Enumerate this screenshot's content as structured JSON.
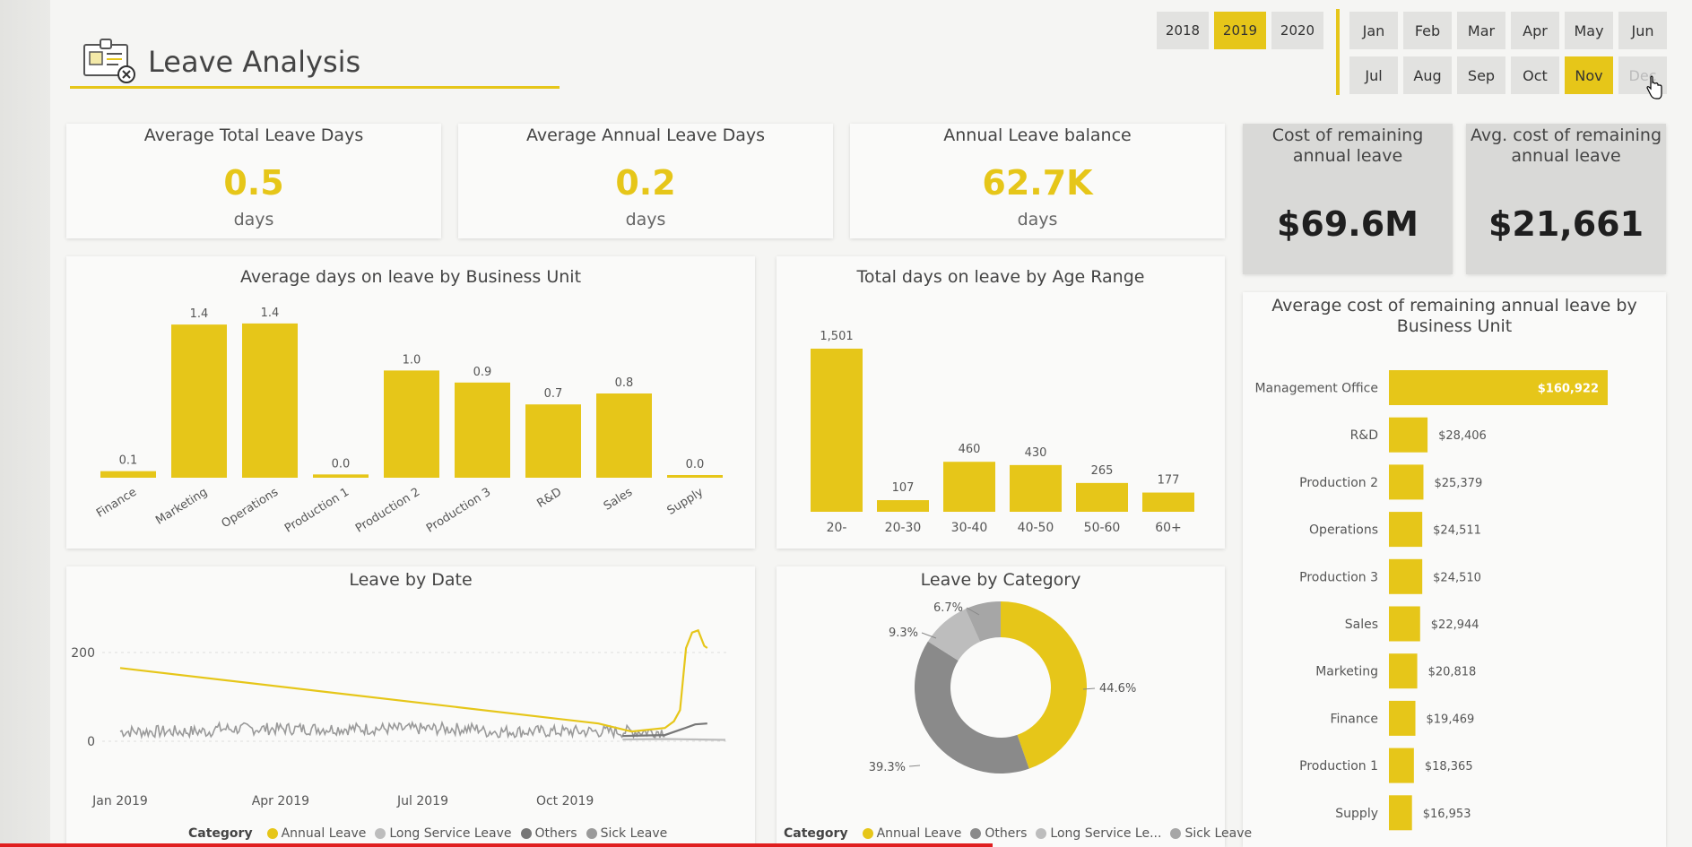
{
  "header": {
    "title": "Leave Analysis",
    "icon": "id-card-icon"
  },
  "years": [
    {
      "label": "2018",
      "active": false
    },
    {
      "label": "2019",
      "active": true
    },
    {
      "label": "2020",
      "active": false
    }
  ],
  "months": [
    {
      "label": "Jan",
      "active": false,
      "disabled": false
    },
    {
      "label": "Feb",
      "active": false,
      "disabled": false
    },
    {
      "label": "Mar",
      "active": false,
      "disabled": false
    },
    {
      "label": "Apr",
      "active": false,
      "disabled": false
    },
    {
      "label": "May",
      "active": false,
      "disabled": false
    },
    {
      "label": "Jun",
      "active": false,
      "disabled": false
    },
    {
      "label": "Jul",
      "active": false,
      "disabled": false
    },
    {
      "label": "Aug",
      "active": false,
      "disabled": false
    },
    {
      "label": "Sep",
      "active": false,
      "disabled": false
    },
    {
      "label": "Oct",
      "active": false,
      "disabled": false
    },
    {
      "label": "Nov",
      "active": true,
      "disabled": false
    },
    {
      "label": "Dec",
      "active": false,
      "disabled": true
    }
  ],
  "kpis": [
    {
      "title": "Average Total Leave Days",
      "value": "0.5",
      "unit": "days"
    },
    {
      "title": "Average Annual Leave Days",
      "value": "0.2",
      "unit": "days"
    },
    {
      "title": "Annual Leave balance",
      "value": "62.7K",
      "unit": "days"
    }
  ],
  "cost_kpis": [
    {
      "title_line1": "Cost of remaining",
      "title_line2": "annual leave",
      "value": "$69.6M"
    },
    {
      "title_line1": "Avg. cost of remaining",
      "title_line2": "annual leave",
      "value": "$21,661"
    }
  ],
  "colors": {
    "accent": "#e6c619",
    "grey_dark": "#777777",
    "grey_mid": "#9a9a9a",
    "grey_light": "#bdbdbd"
  },
  "chart_data": [
    {
      "id": "bu_avg_days",
      "type": "bar",
      "title": "Average days on leave by Business Unit",
      "categories": [
        "Finance",
        "Marketing",
        "Operations",
        "Production 1",
        "Production 2",
        "Production 3",
        "R&D",
        "Sales",
        "Supply"
      ],
      "values": [
        0.1,
        1.4,
        1.4,
        0.0,
        1.0,
        0.9,
        0.7,
        0.8,
        0.0
      ],
      "labels": [
        "0.1",
        "1.4",
        "1.4",
        "0.0",
        "1.0",
        "0.9",
        "0.7",
        "0.8",
        "0.0"
      ],
      "plot_values": [
        0.06,
        1.4,
        1.41,
        0.03,
        0.98,
        0.87,
        0.67,
        0.77,
        0.02
      ],
      "ylim": [
        0,
        1.45
      ]
    },
    {
      "id": "age_total_days",
      "type": "bar",
      "title": "Total days on leave by Age Range",
      "categories": [
        "20-",
        "20-30",
        "30-40",
        "40-50",
        "50-60",
        "60+"
      ],
      "values": [
        1501,
        107,
        460,
        430,
        265,
        177
      ],
      "labels": [
        "1,501",
        "107",
        "460",
        "430",
        "265",
        "177"
      ],
      "ylim": [
        0,
        1550
      ]
    },
    {
      "id": "bu_avg_cost",
      "type": "bar",
      "orientation": "horizontal",
      "title_line1": "Average cost of remaining annual leave by",
      "title_line2": "Business Unit",
      "categories": [
        "Management Office",
        "R&D",
        "Production 2",
        "Operations",
        "Production 3",
        "Sales",
        "Marketing",
        "Finance",
        "Production 1",
        "Supply"
      ],
      "values": [
        160922,
        28406,
        25379,
        24511,
        24510,
        22944,
        20818,
        19469,
        18365,
        16953
      ],
      "labels": [
        "$160,922",
        "$28,406",
        "$25,379",
        "$24,511",
        "$24,510",
        "$22,944",
        "$20,818",
        "$19,469",
        "$18,365",
        "$16,953"
      ],
      "xlim": [
        0,
        160922
      ]
    },
    {
      "id": "leave_by_date",
      "type": "line",
      "title": "Leave by Date",
      "x_ticks": [
        "Jan 2019",
        "Apr 2019",
        "Jul 2019",
        "Oct 2019"
      ],
      "y_ticks": [
        "200",
        "0"
      ],
      "ylim": [
        -20,
        260
      ],
      "legend_title": "Category",
      "series": [
        {
          "name": "Annual Leave",
          "color": "#e6c619",
          "values": [
            [
              0,
              165
            ],
            [
              0.79,
              40
            ],
            [
              0.835,
              25
            ],
            [
              0.845,
              22
            ],
            [
              0.9,
              30
            ],
            [
              0.915,
              45
            ],
            [
              0.925,
              70
            ],
            [
              0.935,
              210
            ],
            [
              0.945,
              245
            ],
            [
              0.955,
              250
            ],
            [
              0.965,
              215
            ],
            [
              0.97,
              210
            ]
          ]
        },
        {
          "name": "Long Service Leave",
          "color": "#bdbdbd",
          "values": [
            [
              0.83,
              4
            ],
            [
              0.9,
              5
            ],
            [
              0.95,
              4
            ],
            [
              1.0,
              3
            ]
          ]
        },
        {
          "name": "Others",
          "color": "#777777",
          "values": [
            [
              0.83,
              12
            ],
            [
              0.9,
              14
            ],
            [
              0.93,
              28
            ],
            [
              0.95,
              38
            ],
            [
              0.97,
              40
            ]
          ]
        },
        {
          "name": "Sick Leave",
          "color": "#9a9a9a",
          "values": "noise"
        }
      ]
    },
    {
      "id": "leave_by_category",
      "type": "pie",
      "title": "Leave by Category",
      "legend_title": "Category",
      "slices": [
        {
          "name": "Annual Leave",
          "value": 44.6,
          "label": "44.6%",
          "color": "#e6c619"
        },
        {
          "name": "Others",
          "value": 39.3,
          "label": "39.3%",
          "color": "#8a8a8a"
        },
        {
          "name": "Long Service Le...",
          "value": 9.3,
          "label": "9.3%",
          "color": "#bdbdbd"
        },
        {
          "name": "Sick Leave",
          "value": 6.7,
          "label": "6.7%",
          "color": "#a6a6a6"
        }
      ]
    }
  ]
}
